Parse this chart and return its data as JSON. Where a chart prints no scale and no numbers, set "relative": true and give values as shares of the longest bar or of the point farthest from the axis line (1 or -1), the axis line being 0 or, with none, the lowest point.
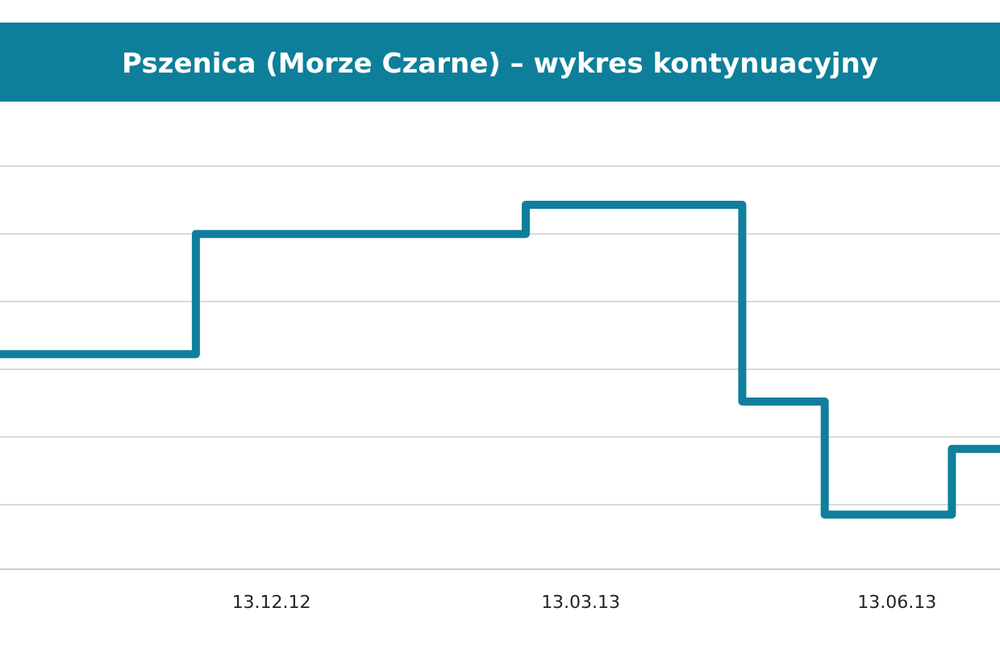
{
  "chart_data": {
    "type": "step",
    "title": "Pszenica (Morze Czarne) – wykres kontynuacyjny",
    "relative": true,
    "grid": "y",
    "x": [
      "2012-09-25",
      "2012-11-21",
      "2013-02-25",
      "2013-04-29",
      "2013-05-23",
      "2013-06-29",
      "2013-07-13"
    ],
    "series": [
      {
        "color": "#0f7f9b",
        "values": [
          0.59,
          0.92,
          1,
          0.46,
          0.15,
          0.33,
          0.33
        ]
      }
    ],
    "xlim": [
      "2012-09-25",
      "2013-07-13"
    ],
    "xticks": [
      {
        "value": "2012-12-13",
        "label": "13.12.12"
      },
      {
        "value": "2013-03-13",
        "label": "13.03.13"
      },
      {
        "value": "2013-06-13",
        "label": "13.06.13"
      }
    ],
    "line_style": "solid",
    "marker": "none"
  }
}
